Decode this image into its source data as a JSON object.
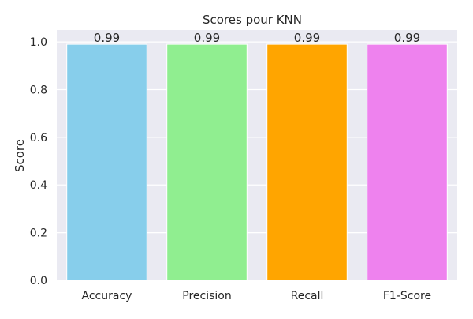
{
  "chart_data": {
    "type": "bar",
    "title": "Scores pour KNN",
    "xlabel": "",
    "ylabel": "Score",
    "categories": [
      "Accuracy",
      "Precision",
      "Recall",
      "F1-Score"
    ],
    "values": [
      0.99,
      0.99,
      0.99,
      0.99
    ],
    "value_labels": [
      "0.99",
      "0.99",
      "0.99",
      "0.99"
    ],
    "bar_colors": [
      "#87CEEB",
      "#90EE90",
      "#FFA500",
      "#EE82EE"
    ],
    "ylim": [
      0,
      1.05
    ],
    "yticks": [
      0.0,
      0.2,
      0.4,
      0.6,
      0.8,
      1.0
    ],
    "ytick_labels": [
      "0.0",
      "0.2",
      "0.4",
      "0.6",
      "0.8",
      "1.0"
    ],
    "grid": true,
    "plot_background": "#EAEAF2",
    "grid_color": "#FFFFFF"
  }
}
